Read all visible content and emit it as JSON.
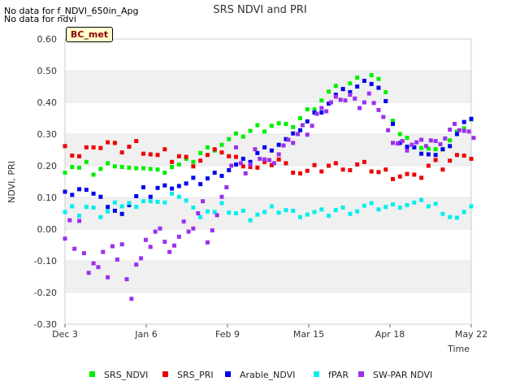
{
  "notices": [
    "No data for f_NDVI_650in_Apg",
    "No data for ndvi"
  ],
  "badge": "BC_met",
  "colors": {
    "SRS_NDVI": "#00ee00",
    "SRS_PRI": "#ee0000",
    "Arable_NDVI": "#0000ee",
    "fPAR": "#00eeee",
    "SW-PAR NDVI": "#9b30ee",
    "band": "#f0f0f0",
    "grid": "#dcdcdc"
  },
  "chart_data": {
    "type": "scatter",
    "title": "SRS NDVI and PRI",
    "xlabel": "Time",
    "ylabel": "NDVI, PRI",
    "ylim": [
      -0.3,
      0.6
    ],
    "xlim": [
      "2023-12-03",
      "2024-05-22"
    ],
    "yticks": [
      "-0.30",
      "-0.20",
      "-0.10",
      "0.00",
      "0.10",
      "0.20",
      "0.30",
      "0.40",
      "0.50",
      "0.60"
    ],
    "xticks": [
      "Dec 3",
      "Jan 6",
      "Feb 9",
      "Mar 15",
      "Apr 18",
      "May 22"
    ],
    "grid": true,
    "legend": "bottom",
    "x_unit": "days after Dec 3",
    "series": [
      {
        "name": "SRS_NDVI",
        "points": [
          [
            0,
            0.19
          ],
          [
            3,
            0.2
          ],
          [
            6,
            0.19
          ],
          [
            9,
            0.2
          ],
          [
            12,
            0.18
          ],
          [
            15,
            0.19
          ],
          [
            18,
            0.2
          ],
          [
            21,
            0.21
          ],
          [
            24,
            0.2
          ],
          [
            27,
            0.19
          ],
          [
            30,
            0.18
          ],
          [
            33,
            0.2
          ],
          [
            36,
            0.19
          ],
          [
            39,
            0.18
          ],
          [
            42,
            0.19
          ],
          [
            45,
            0.2
          ],
          [
            48,
            0.2
          ],
          [
            51,
            0.21
          ],
          [
            54,
            0.22
          ],
          [
            57,
            0.24
          ],
          [
            60,
            0.25
          ],
          [
            63,
            0.26
          ],
          [
            66,
            0.27
          ],
          [
            69,
            0.28
          ],
          [
            72,
            0.29
          ],
          [
            75,
            0.3
          ],
          [
            78,
            0.31
          ],
          [
            81,
            0.32
          ],
          [
            84,
            0.32
          ],
          [
            87,
            0.33
          ],
          [
            90,
            0.33
          ],
          [
            93,
            0.32
          ],
          [
            96,
            0.33
          ],
          [
            99,
            0.35
          ],
          [
            102,
            0.37
          ],
          [
            105,
            0.39
          ],
          [
            108,
            0.41
          ],
          [
            111,
            0.43
          ],
          [
            114,
            0.44
          ],
          [
            117,
            0.45
          ],
          [
            120,
            0.46
          ],
          [
            123,
            0.47
          ],
          [
            126,
            0.48
          ],
          [
            129,
            0.49
          ],
          [
            132,
            0.47
          ],
          [
            135,
            0.42
          ],
          [
            138,
            0.35
          ],
          [
            141,
            0.3
          ],
          [
            144,
            0.28
          ],
          [
            147,
            0.27
          ],
          [
            150,
            0.26
          ],
          [
            153,
            0.25
          ],
          [
            156,
            0.24
          ],
          [
            159,
            0.26
          ],
          [
            162,
            0.28
          ],
          [
            165,
            0.3
          ],
          [
            168,
            0.33
          ],
          [
            171,
            0.35
          ]
        ]
      },
      {
        "name": "SRS_PRI",
        "points": [
          [
            0,
            0.25
          ],
          [
            3,
            0.24
          ],
          [
            6,
            0.23
          ],
          [
            9,
            0.25
          ],
          [
            12,
            0.27
          ],
          [
            15,
            0.26
          ],
          [
            18,
            0.27
          ],
          [
            21,
            0.26
          ],
          [
            24,
            0.25
          ],
          [
            27,
            0.26
          ],
          [
            30,
            0.27
          ],
          [
            33,
            0.25
          ],
          [
            36,
            0.24
          ],
          [
            39,
            0.23
          ],
          [
            42,
            0.24
          ],
          [
            45,
            0.22
          ],
          [
            48,
            0.23
          ],
          [
            51,
            0.22
          ],
          [
            54,
            0.21
          ],
          [
            57,
            0.22
          ],
          [
            60,
            0.23
          ],
          [
            63,
            0.24
          ],
          [
            66,
            0.25
          ],
          [
            69,
            0.23
          ],
          [
            72,
            0.22
          ],
          [
            75,
            0.21
          ],
          [
            78,
            0.2
          ],
          [
            81,
            0.19
          ],
          [
            84,
            0.2
          ],
          [
            87,
            0.21
          ],
          [
            90,
            0.22
          ],
          [
            93,
            0.2
          ],
          [
            96,
            0.19
          ],
          [
            99,
            0.18
          ],
          [
            102,
            0.18
          ],
          [
            105,
            0.19
          ],
          [
            108,
            0.19
          ],
          [
            111,
            0.2
          ],
          [
            114,
            0.2
          ],
          [
            117,
            0.2
          ],
          [
            120,
            0.19
          ],
          [
            123,
            0.2
          ],
          [
            126,
            0.2
          ],
          [
            129,
            0.19
          ],
          [
            132,
            0.18
          ],
          [
            135,
            0.18
          ],
          [
            138,
            0.17
          ],
          [
            141,
            0.17
          ],
          [
            144,
            0.17
          ],
          [
            147,
            0.16
          ],
          [
            150,
            0.17
          ],
          [
            153,
            0.2
          ],
          [
            156,
            0.21
          ],
          [
            159,
            0.2
          ],
          [
            162,
            0.22
          ],
          [
            165,
            0.23
          ],
          [
            168,
            0.22
          ],
          [
            171,
            0.23
          ]
        ]
      },
      {
        "name": "Arable_NDVI",
        "points": [
          [
            0,
            0.11
          ],
          [
            3,
            0.12
          ],
          [
            6,
            0.13
          ],
          [
            9,
            0.12
          ],
          [
            12,
            0.1
          ],
          [
            15,
            0.11
          ],
          [
            18,
            0.07
          ],
          [
            21,
            0.05
          ],
          [
            24,
            0.06
          ],
          [
            27,
            0.08
          ],
          [
            30,
            0.1
          ],
          [
            33,
            0.12
          ],
          [
            36,
            0.11
          ],
          [
            39,
            0.13
          ],
          [
            42,
            0.13
          ],
          [
            45,
            0.14
          ],
          [
            48,
            0.14
          ],
          [
            51,
            0.14
          ],
          [
            54,
            0.15
          ],
          [
            57,
            0.15
          ],
          [
            60,
            0.16
          ],
          [
            63,
            0.17
          ],
          [
            66,
            0.18
          ],
          [
            69,
            0.19
          ],
          [
            72,
            0.2
          ],
          [
            75,
            0.21
          ],
          [
            78,
            0.22
          ],
          [
            81,
            0.24
          ],
          [
            84,
            0.25
          ],
          [
            87,
            0.26
          ],
          [
            90,
            0.27
          ],
          [
            93,
            0.28
          ],
          [
            96,
            0.29
          ],
          [
            99,
            0.32
          ],
          [
            102,
            0.34
          ],
          [
            105,
            0.36
          ],
          [
            108,
            0.38
          ],
          [
            111,
            0.4
          ],
          [
            114,
            0.42
          ],
          [
            117,
            0.43
          ],
          [
            120,
            0.44
          ],
          [
            123,
            0.45
          ],
          [
            126,
            0.46
          ],
          [
            129,
            0.47
          ],
          [
            132,
            0.45
          ],
          [
            135,
            0.4
          ],
          [
            138,
            0.32
          ],
          [
            141,
            0.28
          ],
          [
            144,
            0.26
          ],
          [
            147,
            0.25
          ],
          [
            150,
            0.25
          ],
          [
            153,
            0.24
          ],
          [
            156,
            0.23
          ],
          [
            159,
            0.24
          ],
          [
            162,
            0.27
          ],
          [
            165,
            0.3
          ],
          [
            168,
            0.33
          ],
          [
            171,
            0.36
          ]
        ]
      },
      {
        "name": "fPAR",
        "points": [
          [
            0,
            0.05
          ],
          [
            3,
            0.06
          ],
          [
            6,
            0.05
          ],
          [
            9,
            0.07
          ],
          [
            12,
            0.06
          ],
          [
            15,
            0.05
          ],
          [
            18,
            0.06
          ],
          [
            21,
            0.08
          ],
          [
            24,
            0.06
          ],
          [
            27,
            0.09
          ],
          [
            30,
            0.07
          ],
          [
            33,
            0.08
          ],
          [
            36,
            0.1
          ],
          [
            39,
            0.09
          ],
          [
            42,
            0.08
          ],
          [
            45,
            0.1
          ],
          [
            48,
            0.11
          ],
          [
            51,
            0.09
          ],
          [
            54,
            0.06
          ],
          [
            57,
            0.05
          ],
          [
            60,
            0.06
          ],
          [
            63,
            0.05
          ],
          [
            66,
            0.07
          ],
          [
            69,
            0.06
          ],
          [
            72,
            0.05
          ],
          [
            75,
            0.05
          ],
          [
            78,
            0.04
          ],
          [
            81,
            0.05
          ],
          [
            84,
            0.05
          ],
          [
            87,
            0.06
          ],
          [
            90,
            0.06
          ],
          [
            93,
            0.06
          ],
          [
            96,
            0.05
          ],
          [
            99,
            0.05
          ],
          [
            102,
            0.05
          ],
          [
            105,
            0.05
          ],
          [
            108,
            0.05
          ],
          [
            111,
            0.05
          ],
          [
            114,
            0.06
          ],
          [
            117,
            0.06
          ],
          [
            120,
            0.06
          ],
          [
            123,
            0.06
          ],
          [
            126,
            0.07
          ],
          [
            129,
            0.07
          ],
          [
            132,
            0.07
          ],
          [
            135,
            0.07
          ],
          [
            138,
            0.07
          ],
          [
            141,
            0.08
          ],
          [
            144,
            0.08
          ],
          [
            147,
            0.08
          ],
          [
            150,
            0.08
          ],
          [
            153,
            0.08
          ],
          [
            156,
            0.08
          ],
          [
            159,
            0.04
          ],
          [
            162,
            0.05
          ],
          [
            165,
            0.04
          ],
          [
            168,
            0.05
          ],
          [
            171,
            0.06
          ]
        ]
      },
      {
        "name": "SW-PAR NDVI",
        "points": [
          [
            0,
            -0.03
          ],
          [
            2,
            0.02
          ],
          [
            4,
            -0.05
          ],
          [
            6,
            0.03
          ],
          [
            8,
            -0.08
          ],
          [
            10,
            -0.15
          ],
          [
            12,
            -0.1
          ],
          [
            14,
            -0.12
          ],
          [
            16,
            -0.08
          ],
          [
            18,
            -0.14
          ],
          [
            20,
            -0.05
          ],
          [
            22,
            -0.1
          ],
          [
            24,
            -0.06
          ],
          [
            26,
            -0.15
          ],
          [
            28,
            -0.22
          ],
          [
            30,
            -0.12
          ],
          [
            32,
            -0.08
          ],
          [
            34,
            -0.03
          ],
          [
            36,
            -0.06
          ],
          [
            38,
            -0.02
          ],
          [
            40,
            0.01
          ],
          [
            42,
            -0.04
          ],
          [
            44,
            -0.08
          ],
          [
            46,
            -0.04
          ],
          [
            48,
            -0.02
          ],
          [
            50,
            0.02
          ],
          [
            52,
            -0.02
          ],
          [
            54,
            0.01
          ],
          [
            56,
            0.05
          ],
          [
            58,
            0.08
          ],
          [
            60,
            -0.03
          ],
          [
            62,
            0.0
          ],
          [
            64,
            0.04
          ],
          [
            66,
            0.09
          ],
          [
            68,
            0.14
          ],
          [
            70,
            0.2
          ],
          [
            72,
            0.25
          ],
          [
            74,
            0.22
          ],
          [
            76,
            0.18
          ],
          [
            78,
            0.2
          ],
          [
            80,
            0.24
          ],
          [
            82,
            0.23
          ],
          [
            84,
            0.22
          ],
          [
            86,
            0.21
          ],
          [
            88,
            0.22
          ],
          [
            90,
            0.24
          ],
          [
            92,
            0.26
          ],
          [
            94,
            0.27
          ],
          [
            96,
            0.28
          ],
          [
            98,
            0.3
          ],
          [
            100,
            0.32
          ],
          [
            102,
            0.31
          ],
          [
            104,
            0.33
          ],
          [
            106,
            0.36
          ],
          [
            108,
            0.37
          ],
          [
            110,
            0.38
          ],
          [
            112,
            0.4
          ],
          [
            114,
            0.41
          ],
          [
            116,
            0.42
          ],
          [
            118,
            0.41
          ],
          [
            120,
            0.42
          ],
          [
            122,
            0.4
          ],
          [
            124,
            0.39
          ],
          [
            126,
            0.4
          ],
          [
            128,
            0.42
          ],
          [
            130,
            0.41
          ],
          [
            132,
            0.38
          ],
          [
            134,
            0.35
          ],
          [
            136,
            0.3
          ],
          [
            138,
            0.28
          ],
          [
            140,
            0.27
          ],
          [
            142,
            0.27
          ],
          [
            144,
            0.26
          ],
          [
            146,
            0.27
          ],
          [
            148,
            0.27
          ],
          [
            150,
            0.27
          ],
          [
            152,
            0.27
          ],
          [
            154,
            0.28
          ],
          [
            156,
            0.27
          ],
          [
            158,
            0.28
          ],
          [
            160,
            0.29
          ],
          [
            162,
            0.31
          ],
          [
            164,
            0.32
          ],
          [
            166,
            0.32
          ],
          [
            168,
            0.31
          ],
          [
            170,
            0.3
          ],
          [
            172,
            0.3
          ]
        ]
      }
    ]
  }
}
